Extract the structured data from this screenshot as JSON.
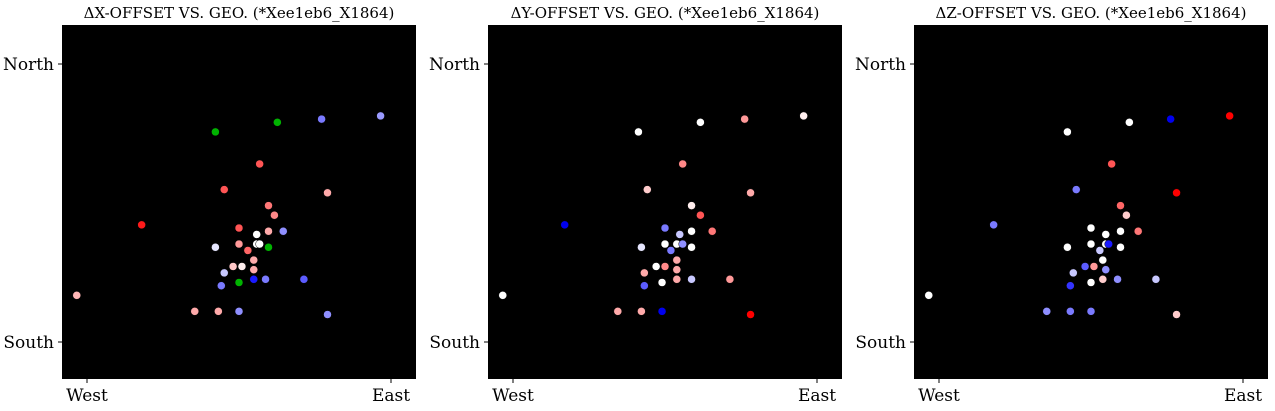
{
  "chart_data": [
    {
      "type": "scatter",
      "title": "ΔX-OFFSET VS. GEO. (*Xee1eb6_X1864)",
      "x_ticks": [
        "West",
        "East"
      ],
      "y_ticks": [
        "North",
        "South"
      ],
      "background": "#000000",
      "points": [
        {
          "x": -0.05,
          "y": 0.22,
          "color": "#ffb6b6"
        },
        {
          "x": 0.17,
          "y": 0.44,
          "color": "#ff1a1a"
        },
        {
          "x": 0.35,
          "y": 0.17,
          "color": "#ffaaaa"
        },
        {
          "x": 0.43,
          "y": 0.17,
          "color": "#ffaaaa"
        },
        {
          "x": 0.5,
          "y": 0.17,
          "color": "#8f8fff"
        },
        {
          "x": 0.42,
          "y": 0.37,
          "color": "#e6e6ff"
        },
        {
          "x": 0.44,
          "y": 0.25,
          "color": "#7a7aff"
        },
        {
          "x": 0.45,
          "y": 0.29,
          "color": "#c8c8ff"
        },
        {
          "x": 0.48,
          "y": 0.31,
          "color": "#ffc8c8"
        },
        {
          "x": 0.5,
          "y": 0.26,
          "color": "#00b300"
        },
        {
          "x": 0.51,
          "y": 0.31,
          "color": "#ffeeee"
        },
        {
          "x": 0.5,
          "y": 0.38,
          "color": "#ff9999"
        },
        {
          "x": 0.5,
          "y": 0.43,
          "color": "#ff5555"
        },
        {
          "x": 0.53,
          "y": 0.36,
          "color": "#ff6666"
        },
        {
          "x": 0.55,
          "y": 0.33,
          "color": "#ffaaaa"
        },
        {
          "x": 0.55,
          "y": 0.3,
          "color": "#ffaaaa"
        },
        {
          "x": 0.55,
          "y": 0.27,
          "color": "#1a1aff"
        },
        {
          "x": 0.56,
          "y": 0.38,
          "color": "#ffffff"
        },
        {
          "x": 0.56,
          "y": 0.41,
          "color": "#ffffff"
        },
        {
          "x": 0.57,
          "y": 0.38,
          "color": "#ffffff"
        },
        {
          "x": 0.6,
          "y": 0.42,
          "color": "#ffaaaa"
        },
        {
          "x": 0.6,
          "y": 0.37,
          "color": "#00b300"
        },
        {
          "x": 0.59,
          "y": 0.27,
          "color": "#7a7aff"
        },
        {
          "x": 0.6,
          "y": 0.5,
          "color": "#ff7777"
        },
        {
          "x": 0.62,
          "y": 0.47,
          "color": "#ff8888"
        },
        {
          "x": 0.57,
          "y": 0.63,
          "color": "#ff5555"
        },
        {
          "x": 0.45,
          "y": 0.55,
          "color": "#ff5555"
        },
        {
          "x": 0.42,
          "y": 0.73,
          "color": "#00b300"
        },
        {
          "x": 0.63,
          "y": 0.76,
          "color": "#00b300"
        },
        {
          "x": 0.65,
          "y": 0.42,
          "color": "#8f8fff"
        },
        {
          "x": 0.72,
          "y": 0.27,
          "color": "#5c5cff"
        },
        {
          "x": 0.8,
          "y": 0.54,
          "color": "#ffaaaa"
        },
        {
          "x": 0.8,
          "y": 0.16,
          "color": "#8f8fff"
        },
        {
          "x": 0.78,
          "y": 0.77,
          "color": "#7a7aff"
        },
        {
          "x": 0.98,
          "y": 0.78,
          "color": "#9a9aff"
        }
      ]
    },
    {
      "type": "scatter",
      "title": "ΔY-OFFSET VS. GEO. (*Xee1eb6_X1864)",
      "x_ticks": [
        "West",
        "East"
      ],
      "y_ticks": [
        "North",
        "South"
      ],
      "background": "#000000",
      "points": [
        {
          "x": -0.05,
          "y": 0.22,
          "color": "#ffffff"
        },
        {
          "x": 0.16,
          "y": 0.44,
          "color": "#0000ee"
        },
        {
          "x": 0.34,
          "y": 0.17,
          "color": "#ffaaaa"
        },
        {
          "x": 0.42,
          "y": 0.17,
          "color": "#ffaaaa"
        },
        {
          "x": 0.49,
          "y": 0.17,
          "color": "#0000ee"
        },
        {
          "x": 0.42,
          "y": 0.37,
          "color": "#e6e6ff"
        },
        {
          "x": 0.43,
          "y": 0.25,
          "color": "#5c5cff"
        },
        {
          "x": 0.43,
          "y": 0.29,
          "color": "#ffaaaa"
        },
        {
          "x": 0.47,
          "y": 0.31,
          "color": "#ffffff"
        },
        {
          "x": 0.49,
          "y": 0.26,
          "color": "#ffffff"
        },
        {
          "x": 0.5,
          "y": 0.31,
          "color": "#ff8888"
        },
        {
          "x": 0.5,
          "y": 0.38,
          "color": "#ffffff"
        },
        {
          "x": 0.5,
          "y": 0.43,
          "color": "#7a7aff"
        },
        {
          "x": 0.52,
          "y": 0.36,
          "color": "#7a7aff"
        },
        {
          "x": 0.54,
          "y": 0.33,
          "color": "#ffaaaa"
        },
        {
          "x": 0.54,
          "y": 0.3,
          "color": "#ffaaaa"
        },
        {
          "x": 0.54,
          "y": 0.27,
          "color": "#ffaaaa"
        },
        {
          "x": 0.54,
          "y": 0.38,
          "color": "#ffffff"
        },
        {
          "x": 0.55,
          "y": 0.41,
          "color": "#c8c8ff"
        },
        {
          "x": 0.56,
          "y": 0.38,
          "color": "#8f8fff"
        },
        {
          "x": 0.59,
          "y": 0.42,
          "color": "#ffffff"
        },
        {
          "x": 0.59,
          "y": 0.37,
          "color": "#ffffff"
        },
        {
          "x": 0.59,
          "y": 0.27,
          "color": "#c8c8ff"
        },
        {
          "x": 0.59,
          "y": 0.5,
          "color": "#ffeeee"
        },
        {
          "x": 0.62,
          "y": 0.47,
          "color": "#ff5555"
        },
        {
          "x": 0.56,
          "y": 0.63,
          "color": "#ff8888"
        },
        {
          "x": 0.44,
          "y": 0.55,
          "color": "#ffcccc"
        },
        {
          "x": 0.41,
          "y": 0.73,
          "color": "#ffffff"
        },
        {
          "x": 0.62,
          "y": 0.76,
          "color": "#ffffff"
        },
        {
          "x": 0.66,
          "y": 0.42,
          "color": "#ff7777"
        },
        {
          "x": 0.72,
          "y": 0.27,
          "color": "#ff9999"
        },
        {
          "x": 0.79,
          "y": 0.54,
          "color": "#ffaaaa"
        },
        {
          "x": 0.79,
          "y": 0.16,
          "color": "#ff0000"
        },
        {
          "x": 0.77,
          "y": 0.77,
          "color": "#ff9999"
        },
        {
          "x": 0.97,
          "y": 0.78,
          "color": "#ffeeee"
        }
      ]
    },
    {
      "type": "scatter",
      "title": "ΔZ-OFFSET VS. GEO. (*Xee1eb6_X1864)",
      "x_ticks": [
        "West",
        "East"
      ],
      "y_ticks": [
        "North",
        "South"
      ],
      "background": "#000000",
      "points": [
        {
          "x": -0.05,
          "y": 0.22,
          "color": "#ffffff"
        },
        {
          "x": 0.17,
          "y": 0.44,
          "color": "#7a7aff"
        },
        {
          "x": 0.35,
          "y": 0.17,
          "color": "#8f8fff"
        },
        {
          "x": 0.43,
          "y": 0.17,
          "color": "#7a7aff"
        },
        {
          "x": 0.5,
          "y": 0.17,
          "color": "#7a7aff"
        },
        {
          "x": 0.42,
          "y": 0.37,
          "color": "#ffffff"
        },
        {
          "x": 0.43,
          "y": 0.25,
          "color": "#3333ff"
        },
        {
          "x": 0.44,
          "y": 0.29,
          "color": "#c8c8ff"
        },
        {
          "x": 0.48,
          "y": 0.31,
          "color": "#5c5cff"
        },
        {
          "x": 0.5,
          "y": 0.26,
          "color": "#ffffff"
        },
        {
          "x": 0.51,
          "y": 0.31,
          "color": "#ff9999"
        },
        {
          "x": 0.5,
          "y": 0.38,
          "color": "#ffffff"
        },
        {
          "x": 0.5,
          "y": 0.43,
          "color": "#ffffff"
        },
        {
          "x": 0.53,
          "y": 0.36,
          "color": "#c8c8ff"
        },
        {
          "x": 0.54,
          "y": 0.33,
          "color": "#ffffff"
        },
        {
          "x": 0.55,
          "y": 0.3,
          "color": "#8f8fff"
        },
        {
          "x": 0.54,
          "y": 0.27,
          "color": "#ffcccc"
        },
        {
          "x": 0.55,
          "y": 0.38,
          "color": "#ffffff"
        },
        {
          "x": 0.55,
          "y": 0.41,
          "color": "#ffffff"
        },
        {
          "x": 0.56,
          "y": 0.38,
          "color": "#1a1aff"
        },
        {
          "x": 0.6,
          "y": 0.42,
          "color": "#ffffff"
        },
        {
          "x": 0.6,
          "y": 0.37,
          "color": "#ffffff"
        },
        {
          "x": 0.59,
          "y": 0.27,
          "color": "#8f8fff"
        },
        {
          "x": 0.6,
          "y": 0.5,
          "color": "#ff6666"
        },
        {
          "x": 0.62,
          "y": 0.47,
          "color": "#ffcccc"
        },
        {
          "x": 0.57,
          "y": 0.63,
          "color": "#ff5555"
        },
        {
          "x": 0.45,
          "y": 0.55,
          "color": "#7a7aff"
        },
        {
          "x": 0.42,
          "y": 0.73,
          "color": "#ffffff"
        },
        {
          "x": 0.63,
          "y": 0.76,
          "color": "#ffffff"
        },
        {
          "x": 0.66,
          "y": 0.42,
          "color": "#ff7777"
        },
        {
          "x": 0.72,
          "y": 0.27,
          "color": "#c8c8ff"
        },
        {
          "x": 0.79,
          "y": 0.54,
          "color": "#ff0000"
        },
        {
          "x": 0.79,
          "y": 0.16,
          "color": "#ffcccc"
        },
        {
          "x": 0.77,
          "y": 0.77,
          "color": "#0000ee"
        },
        {
          "x": 0.97,
          "y": 0.78,
          "color": "#ff0000"
        }
      ]
    }
  ]
}
